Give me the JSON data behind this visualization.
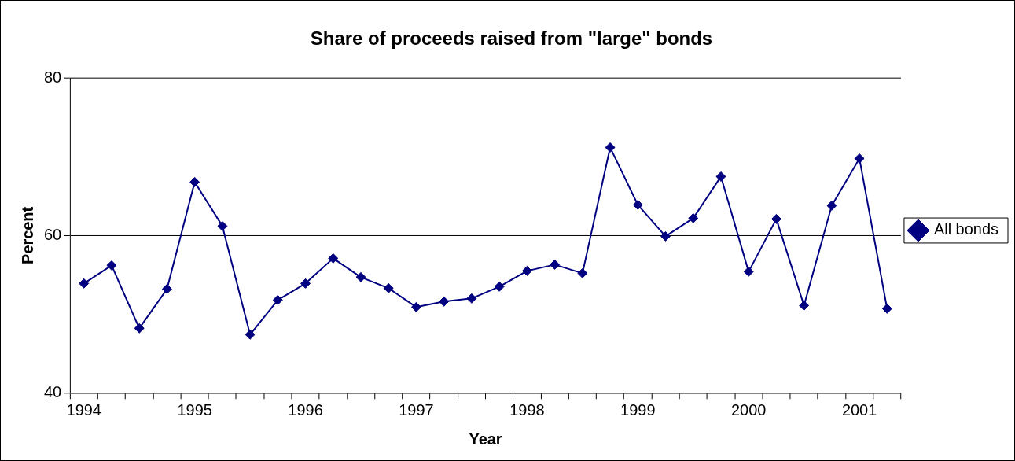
{
  "chart_data": {
    "type": "line",
    "title": "Share of proceeds raised from \"large\" bonds",
    "xlabel": "Year",
    "ylabel": "Percent",
    "categories": [
      "1994",
      null,
      null,
      null,
      "1995",
      null,
      null,
      null,
      "1996",
      null,
      null,
      null,
      "1997",
      null,
      null,
      null,
      "1998",
      null,
      null,
      null,
      "1999",
      null,
      null,
      null,
      "2000",
      null,
      null,
      null,
      "2001",
      null
    ],
    "series": [
      {
        "name": "All bonds",
        "color": "#000080",
        "values": [
          53.9,
          56.2,
          48.2,
          53.2,
          66.8,
          61.2,
          47.4,
          51.8,
          53.9,
          57.1,
          54.7,
          53.3,
          50.9,
          51.6,
          52.0,
          53.5,
          55.5,
          56.3,
          55.2,
          71.2,
          63.9,
          59.9,
          62.2,
          67.5,
          55.4,
          62.1,
          51.1,
          63.8,
          69.8,
          50.7
        ]
      }
    ],
    "ylim": [
      40,
      80
    ],
    "yticks": [
      40,
      60,
      80
    ],
    "grid": "y",
    "legend": "right",
    "marker": "diamond",
    "line_style": "solid"
  }
}
